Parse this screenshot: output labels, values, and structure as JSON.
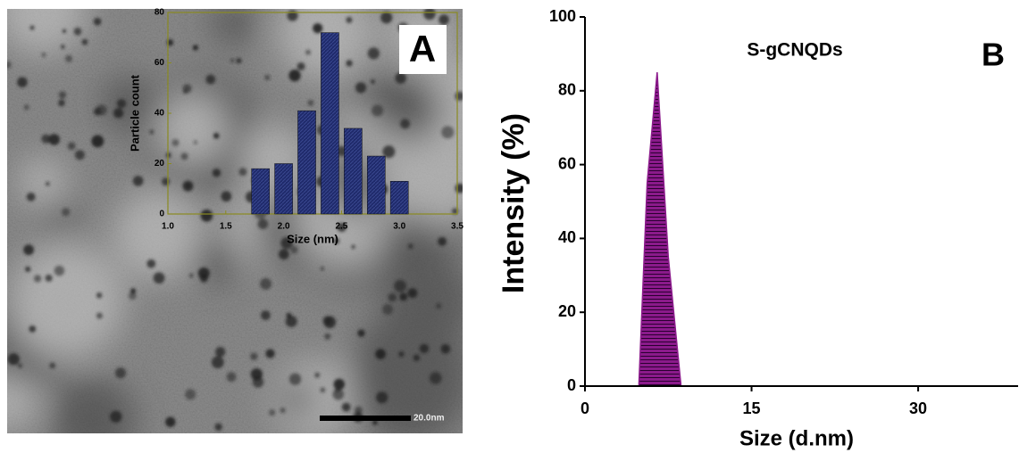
{
  "chart_data": [
    {
      "type": "bar",
      "x_label": "Size (nm)",
      "y_label": "Particle count",
      "panel_label": "A",
      "annotation": "20.0nm",
      "x": [
        1.8,
        2.0,
        2.2,
        2.4,
        2.6,
        2.8,
        3.0
      ],
      "values": [
        18,
        20,
        41,
        72,
        34,
        23,
        13
      ],
      "color": "#1f2a6b",
      "xlim": [
        1,
        3.5
      ],
      "xticks": [
        {
          "value": 1,
          "label": "1.0"
        },
        1.5,
        {
          "value": 2,
          "label": "2.0"
        },
        2.5,
        {
          "value": 3,
          "label": "3.0"
        },
        3.5
      ],
      "ylim": [
        0,
        80
      ],
      "yticks": [
        0,
        20,
        40,
        60,
        80
      ]
    },
    {
      "type": "area",
      "title": "S-gCNQDs",
      "panel_label": "B",
      "x_label": "Size (d.nm)",
      "y_label": "Intensity (%)",
      "x": [
        0,
        4.85,
        5.6,
        6.5,
        7.5,
        8.65,
        39
      ],
      "values": [
        0,
        0,
        55,
        85,
        35,
        0,
        0
      ],
      "color": "#8b1a8b",
      "xlim": [
        0,
        39
      ],
      "xticks": [
        0,
        15,
        30
      ],
      "ylim": [
        0,
        100
      ],
      "yticks": [
        0,
        20,
        40,
        60,
        80,
        100
      ]
    }
  ]
}
